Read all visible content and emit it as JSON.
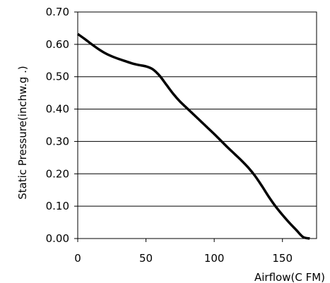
{
  "chart_data": {
    "type": "line",
    "title": "",
    "xlabel": "Airflow(C FM)",
    "ylabel": "Static Pressure(inchw.g .)",
    "xlim": [
      0,
      175
    ],
    "ylim": [
      0,
      0.7
    ],
    "x_ticks": [
      0,
      50,
      100,
      150
    ],
    "x_tick_labels": [
      "0",
      "50",
      "100",
      "150"
    ],
    "y_ticks": [
      0,
      0.1,
      0.2,
      0.3,
      0.4,
      0.5,
      0.6,
      0.7
    ],
    "y_tick_labels": [
      "0.00",
      "0.10",
      "0.20",
      "0.30",
      "0.40",
      "0.50",
      "0.60",
      "0.70"
    ],
    "grid": "horizontal",
    "legend": "none",
    "colors": {
      "line": "#000000",
      "grid": "#000000",
      "frame": "#000000",
      "background": "#ffffff"
    },
    "series": [
      {
        "x": [
          0,
          5,
          10,
          15,
          20,
          25,
          30,
          35,
          40,
          45,
          50,
          55,
          60,
          65,
          70,
          75,
          80,
          85,
          90,
          95,
          100,
          105,
          110,
          115,
          120,
          125,
          130,
          135,
          140,
          145,
          150,
          155,
          160,
          165,
          170
        ],
        "values": [
          0.632,
          0.617,
          0.601,
          0.586,
          0.573,
          0.563,
          0.555,
          0.548,
          0.541,
          0.536,
          0.532,
          0.523,
          0.503,
          0.475,
          0.447,
          0.423,
          0.403,
          0.383,
          0.363,
          0.343,
          0.323,
          0.302,
          0.281,
          0.261,
          0.241,
          0.219,
          0.193,
          0.162,
          0.129,
          0.099,
          0.073,
          0.049,
          0.027,
          0.005,
          0.0
        ]
      }
    ]
  }
}
